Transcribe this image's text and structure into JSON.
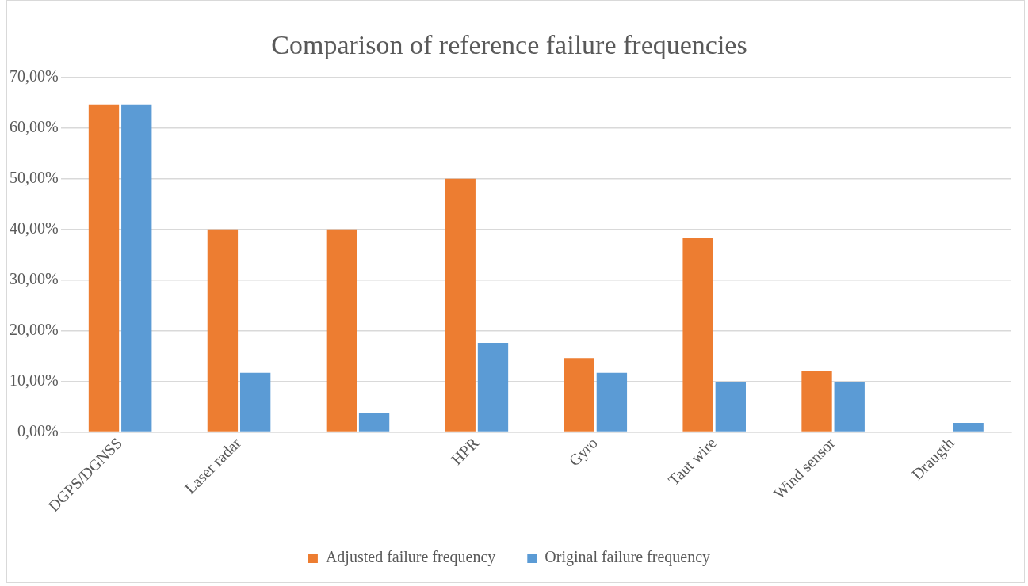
{
  "chart_data": {
    "type": "bar",
    "title": "Comparison of reference failure frequencies",
    "categories": [
      "DGPS/DGNSS",
      "Laser radar",
      null,
      "HPR",
      "Gyro",
      "Taut wire",
      "Wind sensor",
      "Draugth"
    ],
    "series": [
      {
        "name": "Adjusted failure frequency",
        "color": "#ed7d31",
        "values": [
          64.7,
          40,
          40,
          50,
          14.6,
          38.4,
          12.1,
          0
        ]
      },
      {
        "name": "Original failure frequency",
        "color": "#5b9bd5",
        "values": [
          64.7,
          11.7,
          3.8,
          17.6,
          11.7,
          9.8,
          9.8,
          1.8
        ]
      }
    ],
    "ylim": [
      0,
      70
    ],
    "yticks": [
      {
        "value": 0,
        "label": "0,00%"
      },
      {
        "value": 10,
        "label": "10,00%"
      },
      {
        "value": 20,
        "label": "20,00%"
      },
      {
        "value": 30,
        "label": "30,00%"
      },
      {
        "value": 40,
        "label": "40,00%"
      },
      {
        "value": 50,
        "label": "50,00%"
      },
      {
        "value": 60,
        "label": "60,00%"
      },
      {
        "value": 70,
        "label": "70,00%"
      }
    ],
    "grid": "y",
    "legend": "bottom"
  }
}
